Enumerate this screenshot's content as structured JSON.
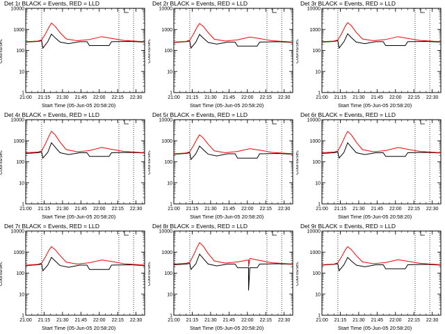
{
  "chart_data": [
    {
      "type": "line",
      "title": "Det 1r BLACK = Events, RED = LLD",
      "xlabel": "Start Time (05-Jun-05 20:58:20)",
      "ylabel": "Counts/sec",
      "log_y": true,
      "ylim": [
        1,
        10000
      ],
      "y_ticks": [
        "1",
        "10",
        "100",
        "1000",
        "10000"
      ],
      "x_ticks": [
        "21:00",
        "21:15",
        "21:30",
        "21:45",
        "22:00",
        "22:15",
        "22:30"
      ],
      "xlim": [
        "21:00",
        "22:37"
      ],
      "marker_times": [
        "21:13",
        "22:16",
        "22:28"
      ],
      "series": [
        {
          "color": "#000000",
          "x": [
            "21:00",
            "21:10",
            "21:13",
            "21:14",
            "21:18",
            "21:21",
            "21:24",
            "21:28",
            "21:35",
            "21:44",
            "21:50",
            "21:52",
            "22:08",
            "22:10",
            "22:25",
            "22:37"
          ],
          "values": [
            250,
            270,
            290,
            130,
            260,
            600,
            400,
            250,
            210,
            260,
            260,
            170,
            170,
            260,
            270,
            250
          ]
        },
        {
          "color": "#ff0000",
          "x": [
            "21:00",
            "21:10",
            "21:13",
            "21:16",
            "21:19",
            "21:21",
            "21:24",
            "21:28",
            "21:33",
            "21:42",
            "21:52",
            "22:02",
            "22:12",
            "22:20",
            "22:37"
          ],
          "values": [
            260,
            280,
            320,
            600,
            1300,
            2000,
            1400,
            700,
            350,
            290,
            330,
            450,
            360,
            300,
            260
          ]
        }
      ]
    },
    {
      "type": "line",
      "title": "Det 2r BLACK = Events, RED = LLD",
      "xlabel": "Start Time (05-Jun-05 20:58:20)",
      "ylabel": "Counts/sec",
      "log_y": true,
      "ylim": [
        1,
        10000
      ],
      "y_ticks": [
        "1",
        "10",
        "100",
        "1000",
        "10000"
      ],
      "x_ticks": [
        "21:00",
        "21:15",
        "21:30",
        "21:45",
        "22:00",
        "22:15",
        "22:30"
      ],
      "xlim": [
        "21:00",
        "22:37"
      ],
      "marker_times": [
        "21:13",
        "22:16",
        "22:28"
      ],
      "series": [
        {
          "color": "#000000",
          "x": [
            "21:00",
            "21:10",
            "21:13",
            "21:14",
            "21:18",
            "21:21",
            "21:24",
            "21:28",
            "21:35",
            "21:44",
            "21:50",
            "21:52",
            "22:08",
            "22:10",
            "22:25",
            "22:37"
          ],
          "values": [
            240,
            260,
            280,
            130,
            250,
            580,
            390,
            240,
            200,
            250,
            250,
            160,
            160,
            250,
            260,
            240
          ]
        },
        {
          "color": "#ff0000",
          "x": [
            "21:00",
            "21:10",
            "21:13",
            "21:16",
            "21:19",
            "21:21",
            "21:24",
            "21:28",
            "21:33",
            "21:42",
            "21:52",
            "22:02",
            "22:12",
            "22:20",
            "22:37"
          ],
          "values": [
            250,
            270,
            310,
            600,
            1300,
            1900,
            1400,
            700,
            340,
            280,
            320,
            430,
            350,
            290,
            250
          ]
        }
      ]
    },
    {
      "type": "line",
      "title": "Det 3r BLACK = Events, RED = LLD",
      "xlabel": "Start Time (05-Jun-05 20:58:20)",
      "ylabel": "Counts/sec",
      "log_y": true,
      "ylim": [
        1,
        10000
      ],
      "y_ticks": [
        "1",
        "10",
        "100",
        "1000",
        "10000"
      ],
      "x_ticks": [
        "21:00",
        "21:15",
        "21:30",
        "21:45",
        "22:00",
        "22:15",
        "22:30"
      ],
      "xlim": [
        "21:00",
        "22:37"
      ],
      "marker_times": [
        "21:13",
        "22:16",
        "22:28"
      ],
      "series": [
        {
          "color": "#000000",
          "x": [
            "21:00",
            "21:10",
            "21:13",
            "21:14",
            "21:18",
            "21:21",
            "21:24",
            "21:28",
            "21:35",
            "21:44",
            "21:50",
            "21:52",
            "22:08",
            "22:10",
            "22:25",
            "22:37"
          ],
          "values": [
            250,
            270,
            290,
            130,
            260,
            620,
            410,
            250,
            210,
            260,
            260,
            170,
            170,
            260,
            270,
            250
          ]
        },
        {
          "color": "#ff0000",
          "x": [
            "21:00",
            "21:10",
            "21:13",
            "21:16",
            "21:19",
            "21:21",
            "21:24",
            "21:28",
            "21:33",
            "21:42",
            "21:52",
            "22:02",
            "22:12",
            "22:20",
            "22:37"
          ],
          "values": [
            260,
            280,
            320,
            620,
            1400,
            2100,
            1500,
            720,
            350,
            290,
            330,
            450,
            360,
            300,
            260
          ]
        }
      ]
    },
    {
      "type": "line",
      "title": "Det 4r BLACK = Events, RED = LLD",
      "xlabel": "Start Time (05-Jun-05 20:58:20)",
      "ylabel": "Counts/sec",
      "log_y": true,
      "ylim": [
        1,
        10000
      ],
      "y_ticks": [
        "1",
        "10",
        "100",
        "1000",
        "10000"
      ],
      "x_ticks": [
        "21:00",
        "21:15",
        "21:30",
        "21:45",
        "22:00",
        "22:15",
        "22:30"
      ],
      "xlim": [
        "21:00",
        "22:37"
      ],
      "marker_times": [
        "21:13",
        "22:16",
        "22:28"
      ],
      "series": [
        {
          "color": "#000000",
          "x": [
            "21:00",
            "21:10",
            "21:13",
            "21:14",
            "21:18",
            "21:21",
            "21:24",
            "21:28",
            "21:35",
            "21:44",
            "21:50",
            "21:52",
            "22:08",
            "22:10",
            "22:25",
            "22:37"
          ],
          "values": [
            250,
            270,
            290,
            150,
            280,
            800,
            500,
            270,
            220,
            270,
            270,
            180,
            180,
            270,
            280,
            260
          ]
        },
        {
          "color": "#ff0000",
          "x": [
            "21:00",
            "21:10",
            "21:13",
            "21:16",
            "21:19",
            "21:21",
            "21:24",
            "21:28",
            "21:33",
            "21:42",
            "21:52",
            "22:02",
            "22:12",
            "22:20",
            "22:37"
          ],
          "values": [
            270,
            290,
            330,
            700,
            1700,
            2800,
            1900,
            850,
            380,
            300,
            340,
            480,
            370,
            310,
            270
          ]
        }
      ]
    },
    {
      "type": "line",
      "title": "Det 5r BLACK = Events, RED = LLD",
      "xlabel": "Start Time (05-Jun-05 20:58:20)",
      "ylabel": "Counts/sec",
      "log_y": true,
      "ylim": [
        1,
        10000
      ],
      "y_ticks": [
        "1",
        "10",
        "100",
        "1000",
        "10000"
      ],
      "x_ticks": [
        "21:00",
        "21:15",
        "21:30",
        "21:45",
        "22:00",
        "22:15",
        "22:30"
      ],
      "xlim": [
        "21:00",
        "22:37"
      ],
      "marker_times": [
        "21:13",
        "22:16",
        "22:28"
      ],
      "series": [
        {
          "color": "#000000",
          "x": [
            "21:00",
            "21:10",
            "21:13",
            "21:14",
            "21:18",
            "21:21",
            "21:24",
            "21:28",
            "21:35",
            "21:44",
            "21:50",
            "21:52",
            "22:08",
            "22:10",
            "22:25",
            "22:37"
          ],
          "values": [
            230,
            250,
            270,
            130,
            240,
            560,
            380,
            230,
            190,
            240,
            240,
            150,
            150,
            240,
            250,
            230
          ]
        },
        {
          "color": "#ff0000",
          "x": [
            "21:00",
            "21:10",
            "21:13",
            "21:16",
            "21:19",
            "21:21",
            "21:24",
            "21:28",
            "21:33",
            "21:42",
            "21:52",
            "22:02",
            "22:12",
            "22:20",
            "22:37"
          ],
          "values": [
            240,
            260,
            300,
            580,
            1250,
            1900,
            1350,
            680,
            330,
            270,
            310,
            420,
            340,
            280,
            240
          ]
        }
      ]
    },
    {
      "type": "line",
      "title": "Det 6r BLACK = Events, RED = LLD",
      "xlabel": "Start Time (05-Jun-05 20:58:20)",
      "ylabel": "Counts/sec",
      "log_y": true,
      "ylim": [
        1,
        10000
      ],
      "y_ticks": [
        "1",
        "10",
        "100",
        "1000",
        "10000"
      ],
      "x_ticks": [
        "21:00",
        "21:15",
        "21:30",
        "21:45",
        "22:00",
        "22:15",
        "22:30"
      ],
      "xlim": [
        "21:00",
        "22:37"
      ],
      "marker_times": [
        "21:13",
        "22:16",
        "22:28"
      ],
      "series": [
        {
          "color": "#000000",
          "x": [
            "21:00",
            "21:10",
            "21:13",
            "21:14",
            "21:18",
            "21:21",
            "21:24",
            "21:28",
            "21:35",
            "21:44",
            "21:50",
            "21:52",
            "22:08",
            "22:10",
            "22:25",
            "22:37"
          ],
          "values": [
            250,
            270,
            290,
            150,
            280,
            800,
            500,
            270,
            220,
            270,
            270,
            180,
            180,
            270,
            280,
            260
          ]
        },
        {
          "color": "#ff0000",
          "x": [
            "21:00",
            "21:10",
            "21:13",
            "21:16",
            "21:19",
            "21:21",
            "21:24",
            "21:28",
            "21:33",
            "21:42",
            "21:52",
            "22:02",
            "22:12",
            "22:20",
            "22:37"
          ],
          "values": [
            270,
            290,
            330,
            700,
            1700,
            2800,
            1900,
            850,
            380,
            300,
            340,
            480,
            370,
            310,
            270
          ]
        }
      ]
    },
    {
      "type": "line",
      "title": "Det 7r BLACK = Events, RED = LLD",
      "xlabel": "Start Time (05-Jun-05 20:58:20)",
      "ylabel": "Counts/sec",
      "log_y": true,
      "ylim": [
        1,
        10000
      ],
      "y_ticks": [
        "1",
        "10",
        "100",
        "1000",
        "10000"
      ],
      "x_ticks": [
        "21:00",
        "21:15",
        "21:30",
        "21:45",
        "22:00",
        "22:15",
        "22:30"
      ],
      "xlim": [
        "21:00",
        "22:37"
      ],
      "marker_times": [
        "21:13",
        "22:16",
        "22:28"
      ],
      "series": [
        {
          "color": "#000000",
          "x": [
            "21:00",
            "21:10",
            "21:13",
            "21:14",
            "21:18",
            "21:21",
            "21:24",
            "21:28",
            "21:35",
            "21:44",
            "21:50",
            "21:52",
            "22:08",
            "22:10",
            "22:25",
            "22:37"
          ],
          "values": [
            230,
            250,
            270,
            130,
            240,
            560,
            380,
            230,
            190,
            240,
            240,
            150,
            150,
            240,
            250,
            230
          ]
        },
        {
          "color": "#ff0000",
          "x": [
            "21:00",
            "21:10",
            "21:13",
            "21:16",
            "21:19",
            "21:21",
            "21:24",
            "21:28",
            "21:33",
            "21:42",
            "21:52",
            "22:02",
            "22:12",
            "22:20",
            "22:37"
          ],
          "values": [
            240,
            260,
            300,
            580,
            1250,
            1800,
            1300,
            680,
            330,
            270,
            310,
            420,
            340,
            280,
            240
          ]
        }
      ]
    },
    {
      "type": "line",
      "title": "Det 8r BLACK = Events, RED = LLD",
      "xlabel": "Start Time (05-Jun-05 20:58:20)",
      "ylabel": "Counts/sec",
      "log_y": true,
      "ylim": [
        1,
        10000
      ],
      "y_ticks": [
        "1",
        "10",
        "100",
        "1000",
        "10000"
      ],
      "x_ticks": [
        "21:00",
        "21:15",
        "21:30",
        "21:45",
        "22:00",
        "22:15",
        "22:30"
      ],
      "xlim": [
        "21:00",
        "22:37"
      ],
      "marker_times": [
        "21:13",
        "22:16",
        "22:28"
      ],
      "series": [
        {
          "color": "#000000",
          "x": [
            "21:00",
            "21:10",
            "21:13",
            "21:14",
            "21:18",
            "21:21",
            "21:24",
            "21:28",
            "21:35",
            "21:44",
            "21:50",
            "21:52",
            "22:01",
            "22:01",
            "22:02",
            "22:08",
            "22:10",
            "22:25",
            "22:37"
          ],
          "values": [
            250,
            270,
            290,
            150,
            280,
            800,
            500,
            270,
            220,
            270,
            270,
            180,
            180,
            15,
            180,
            180,
            270,
            280,
            260
          ]
        },
        {
          "color": "#ff0000",
          "x": [
            "21:00",
            "21:10",
            "21:13",
            "21:16",
            "21:19",
            "21:21",
            "21:24",
            "21:28",
            "21:33",
            "21:42",
            "21:52",
            "22:01",
            "22:01",
            "22:02",
            "22:12",
            "22:20",
            "22:37"
          ],
          "values": [
            270,
            290,
            330,
            700,
            1700,
            2800,
            1900,
            850,
            380,
            300,
            340,
            420,
            200,
            500,
            380,
            310,
            270
          ]
        }
      ]
    },
    {
      "type": "line",
      "title": "Det 9r BLACK = Events, RED = LLD",
      "xlabel": "Start Time (05-Jun-05 20:58:20)",
      "ylabel": "Counts/sec",
      "log_y": true,
      "ylim": [
        1,
        10000
      ],
      "y_ticks": [
        "1",
        "10",
        "100",
        "1000",
        "10000"
      ],
      "x_ticks": [
        "21:00",
        "21:15",
        "21:30",
        "21:45",
        "22:00",
        "22:15",
        "22:30"
      ],
      "xlim": [
        "21:00",
        "22:37"
      ],
      "marker_times": [
        "21:13",
        "22:16",
        "22:28"
      ],
      "series": [
        {
          "color": "#000000",
          "x": [
            "21:00",
            "21:10",
            "21:13",
            "21:14",
            "21:18",
            "21:21",
            "21:24",
            "21:28",
            "21:35",
            "21:44",
            "21:50",
            "21:52",
            "22:08",
            "22:10",
            "22:25",
            "22:37"
          ],
          "values": [
            240,
            260,
            280,
            130,
            250,
            560,
            380,
            240,
            200,
            250,
            250,
            160,
            160,
            250,
            260,
            240
          ]
        },
        {
          "color": "#ff0000",
          "x": [
            "21:00",
            "21:10",
            "21:13",
            "21:16",
            "21:19",
            "21:21",
            "21:24",
            "21:28",
            "21:33",
            "21:42",
            "21:52",
            "22:02",
            "22:12",
            "22:20",
            "22:37"
          ],
          "values": [
            250,
            270,
            310,
            600,
            1250,
            1800,
            1300,
            680,
            340,
            280,
            320,
            430,
            350,
            290,
            250
          ]
        }
      ]
    }
  ]
}
